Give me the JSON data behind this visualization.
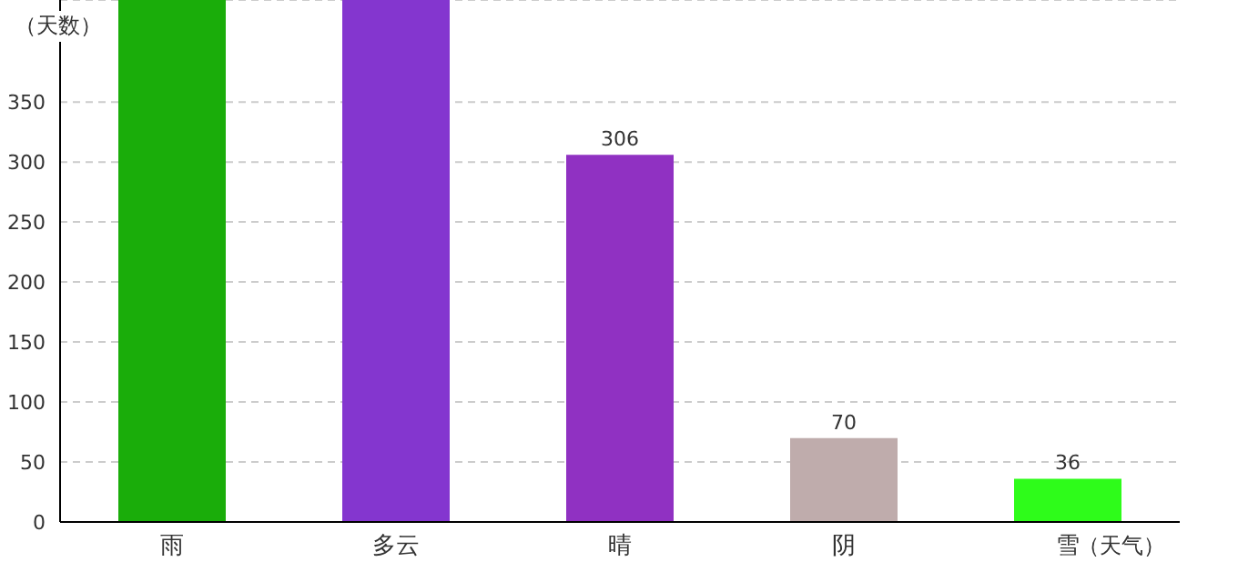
{
  "chart_data": {
    "type": "bar",
    "xlabel": "（天气）",
    "ylabel": "（天数）",
    "categories": [
      "雨",
      "多云",
      "晴",
      "阴",
      "雪"
    ],
    "values": [
      435,
      435,
      306,
      70,
      36
    ],
    "colors": [
      "#1aad0a",
      "#8436cf",
      "#9031c2",
      "#bfacac",
      "#2efc1a"
    ],
    "value_labels": [
      null,
      null,
      "306",
      "70",
      "36"
    ],
    "ylim": [
      0,
      435
    ],
    "yticks": [
      0,
      50,
      100,
      150,
      200,
      250,
      300,
      350
    ],
    "grid": "y"
  }
}
